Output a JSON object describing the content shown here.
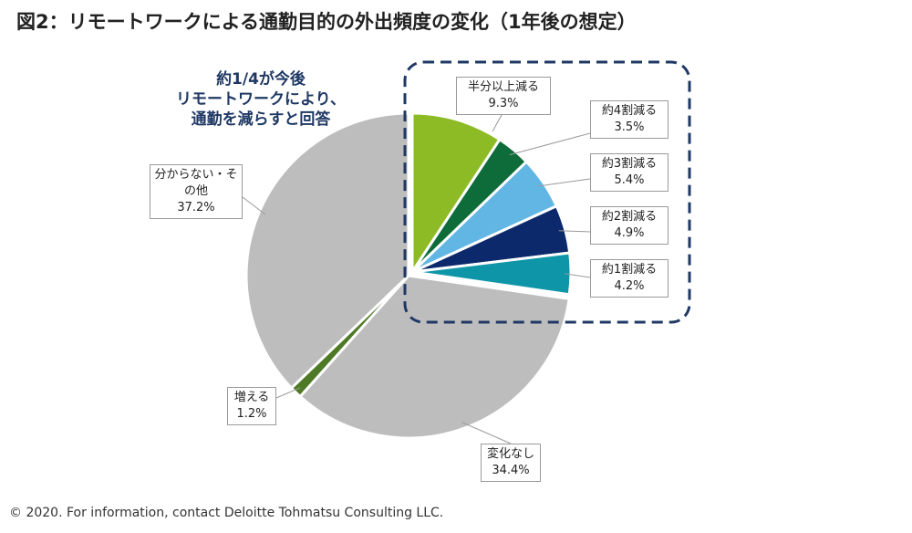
{
  "title": "図2：リモートワークによる通勤目的の外出頻度の変化（1年後の想定）",
  "callout_lines": [
    "約1/4が今後",
    "リモートワークにより、",
    "通勤を減らすと回答"
  ],
  "footer": "© 2020. For information, contact Deloitte Tohmatsu Consulting LLC.",
  "chart_data": {
    "type": "pie",
    "title": "図2：リモートワークによる通勤目的の外出頻度の変化（1年後の想定）",
    "unit": "%",
    "slices": [
      {
        "label": "半分以上減る",
        "value": 9.3,
        "value_label": "9.3%",
        "color": "#8dbb25"
      },
      {
        "label": "約4割減る",
        "value": 3.5,
        "value_label": "3.5%",
        "color": "#0e6b3a"
      },
      {
        "label": "約3割減る",
        "value": 5.4,
        "value_label": "5.4%",
        "color": "#62b6e4"
      },
      {
        "label": "約2割減る",
        "value": 4.9,
        "value_label": "4.9%",
        "color": "#0c2a6b"
      },
      {
        "label": "約1割減る",
        "value": 4.2,
        "value_label": "4.2%",
        "color": "#0e96a8"
      },
      {
        "label": "変化なし",
        "value": 34.4,
        "value_label": "34.4%",
        "color": "#bdbdbd"
      },
      {
        "label": "増える",
        "value": 1.2,
        "value_label": "1.2%",
        "color": "#4f7a25"
      },
      {
        "label": "分からない・その他",
        "value": 37.2,
        "value_label": "37.2%",
        "color": "#bdbdbd"
      }
    ]
  }
}
